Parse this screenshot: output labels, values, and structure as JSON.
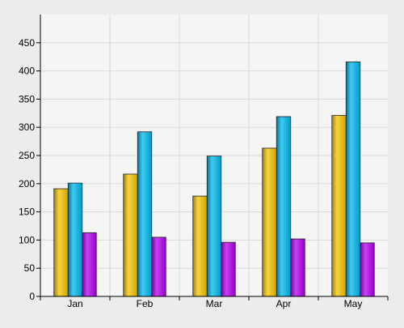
{
  "chart_data": {
    "type": "bar",
    "categories": [
      "Jan",
      "Feb",
      "Mar",
      "Apr",
      "May"
    ],
    "series": [
      {
        "values": [
          191,
          217,
          178,
          263,
          321
        ],
        "color": "#f5c400"
      },
      {
        "values": [
          201,
          292,
          249,
          319,
          416
        ],
        "color": "#00b8ee"
      },
      {
        "values": [
          113,
          105,
          96,
          102,
          95
        ],
        "color": "#b400ee"
      }
    ],
    "y_ticks": [
      "0",
      "50",
      "100",
      "150",
      "200",
      "250",
      "300",
      "350",
      "400",
      "450"
    ],
    "ylim": [
      0,
      500
    ],
    "grid": true,
    "legend": "none",
    "title": "",
    "xlabel": "",
    "ylabel": ""
  }
}
